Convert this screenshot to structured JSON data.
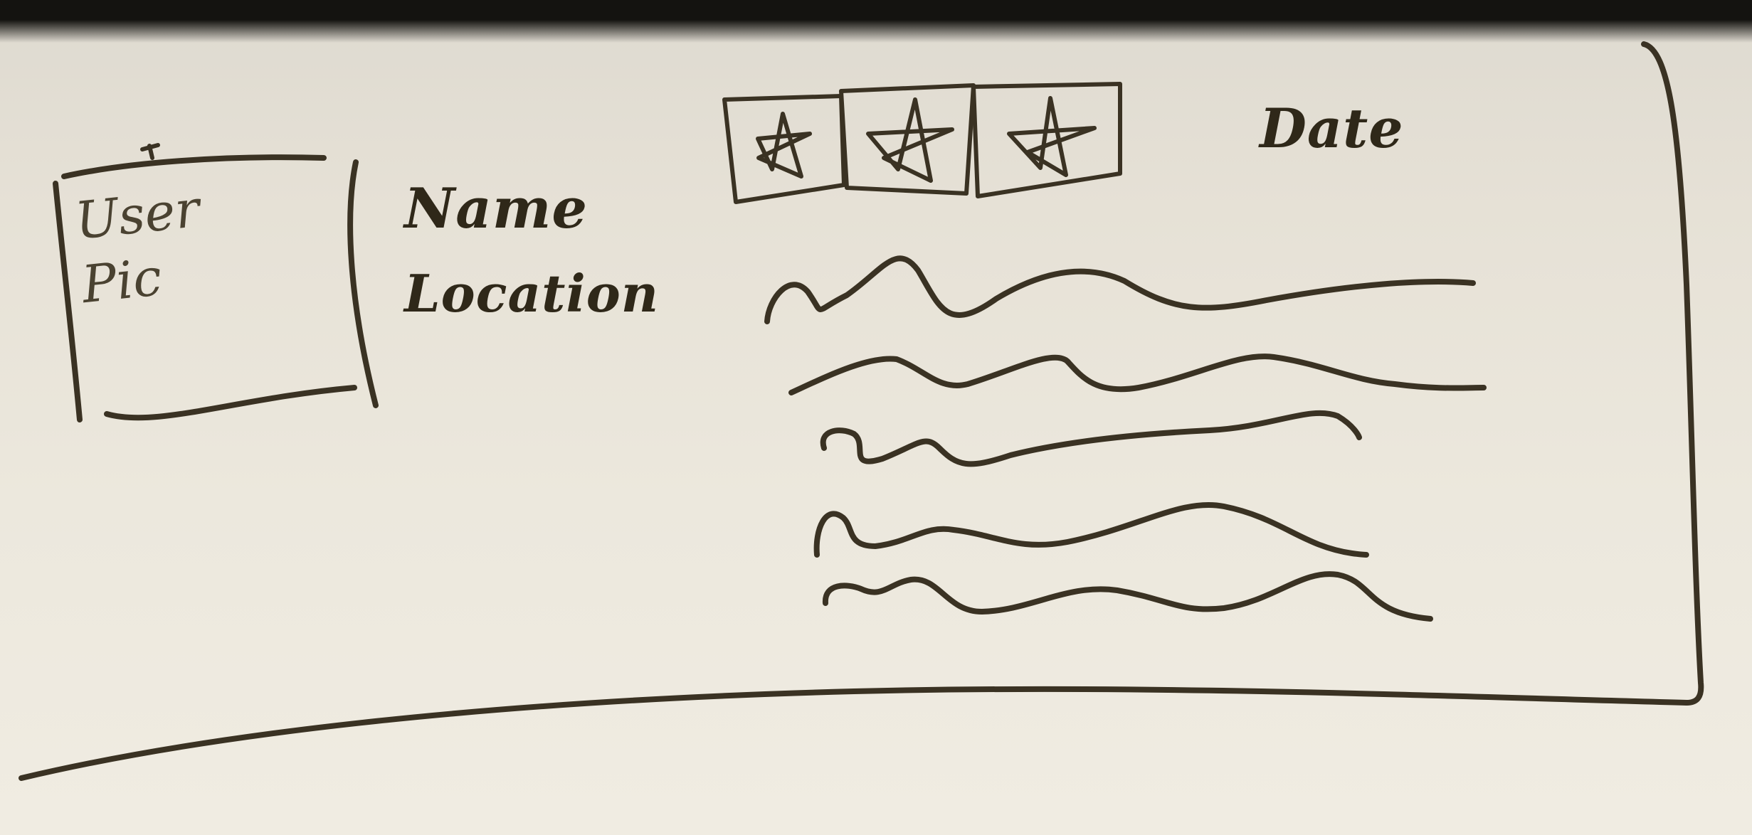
{
  "card": {
    "user_pic_label": "User Pic",
    "name_label": "Name",
    "location_label": "Location",
    "date_label": "Date"
  },
  "rating": {
    "stars_shown": 3
  },
  "body_text": {
    "lines": 5
  },
  "colors": {
    "ink": "#3a3223",
    "whiteboard": "#ece8dd"
  },
  "icons": [
    "star-icon",
    "star-icon",
    "star-icon"
  ]
}
